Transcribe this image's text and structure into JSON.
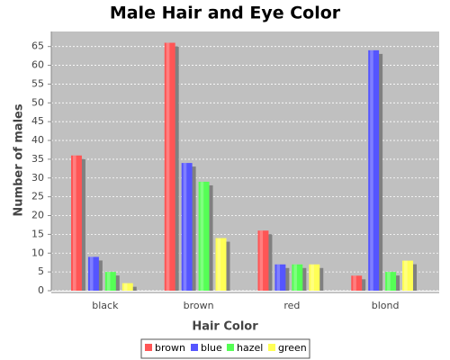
{
  "chart_data": {
    "type": "bar",
    "title": "Male Hair and Eye Color",
    "x_label": "Hair Color",
    "y_label": "Number of males",
    "categories": [
      "black",
      "brown",
      "red",
      "blond"
    ],
    "series": [
      {
        "name": "brown",
        "color": "#ff5555",
        "values": [
          36,
          66,
          16,
          4
        ]
      },
      {
        "name": "blue",
        "color": "#5555ff",
        "values": [
          9,
          34,
          7,
          64
        ]
      },
      {
        "name": "hazel",
        "color": "#55ff55",
        "values": [
          5,
          29,
          7,
          5
        ]
      },
      {
        "name": "green",
        "color": "#ffff55",
        "values": [
          2,
          14,
          7,
          8
        ]
      }
    ],
    "ylim": [
      0,
      69
    ],
    "yticks": [
      0,
      5,
      10,
      15,
      20,
      25,
      30,
      35,
      40,
      45,
      50,
      55,
      60,
      65
    ],
    "grid": true,
    "legend": "bottom"
  }
}
